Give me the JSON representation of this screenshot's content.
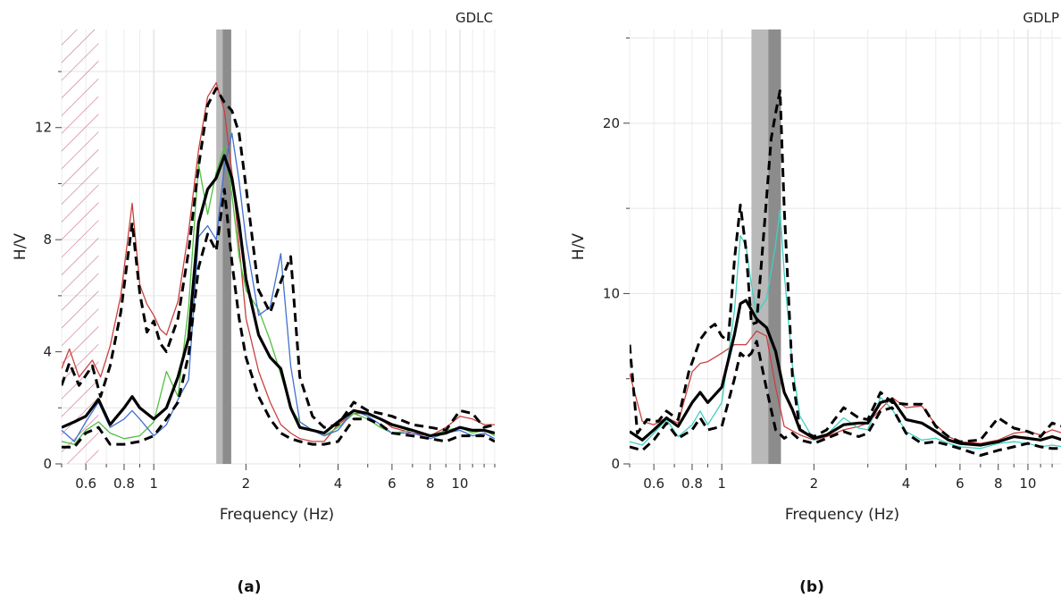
{
  "chart_data": [
    {
      "type": "line",
      "title": "GDLC",
      "caption": "(a)",
      "xlabel": "Frequency (Hz)",
      "ylabel": "H/V",
      "xscale": "log",
      "xlim": [
        0.5,
        13
      ],
      "ylim": [
        0,
        15.5
      ],
      "xticks": [
        {
          "v": 0.6,
          "t": "0.6"
        },
        {
          "v": 0.8,
          "t": "0.8"
        },
        {
          "v": 1,
          "t": "1"
        },
        {
          "v": 2,
          "t": "2"
        },
        {
          "v": 4,
          "t": "4"
        },
        {
          "v": 6,
          "t": "6"
        },
        {
          "v": 8,
          "t": "8"
        },
        {
          "v": 10,
          "t": "10"
        }
      ],
      "yticks": [
        {
          "v": 0,
          "t": "0"
        },
        {
          "v": 4,
          "t": "4"
        },
        {
          "v": 8,
          "t": "8"
        },
        {
          "v": 12,
          "t": "12"
        }
      ],
      "grid": true,
      "hatched_region": [
        0.5,
        0.66
      ],
      "peak_band": {
        "outer": [
          1.6,
          1.79
        ],
        "inner": [
          1.68,
          1.79
        ]
      },
      "series": [
        {
          "role": "component",
          "color": "#cc4040",
          "width": 1.3,
          "dash": "",
          "x": [
            0.5,
            0.53,
            0.57,
            0.63,
            0.67,
            0.72,
            0.78,
            0.85,
            0.9,
            0.95,
            1.0,
            1.05,
            1.1,
            1.2,
            1.3,
            1.4,
            1.5,
            1.6,
            1.7,
            1.8,
            1.9,
            2.0,
            2.2,
            2.4,
            2.6,
            2.8,
            3.0,
            3.3,
            3.6,
            4.0,
            4.5,
            5.0,
            5.5,
            6.0,
            7.0,
            8.0,
            9.0,
            10.0,
            11.0,
            12.0,
            13.0
          ],
          "y": [
            3.4,
            4.1,
            3.1,
            3.7,
            3.1,
            4.2,
            6.0,
            9.3,
            6.4,
            5.7,
            5.3,
            4.8,
            4.6,
            5.8,
            8.3,
            11.2,
            13.1,
            13.6,
            12.6,
            10.4,
            7.8,
            5.2,
            3.3,
            2.2,
            1.4,
            1.1,
            0.9,
            0.8,
            0.8,
            1.4,
            1.8,
            1.8,
            1.6,
            1.3,
            1.1,
            1.0,
            1.3,
            1.7,
            1.6,
            1.4,
            1.4
          ]
        },
        {
          "role": "component",
          "color": "#50c040",
          "width": 1.3,
          "dash": "",
          "x": [
            0.5,
            0.55,
            0.6,
            0.66,
            0.72,
            0.8,
            0.9,
            1.0,
            1.1,
            1.2,
            1.3,
            1.4,
            1.5,
            1.6,
            1.7,
            1.8,
            1.9,
            2.0,
            2.2,
            2.4,
            2.6,
            2.8,
            3.0,
            3.3,
            3.6,
            4.0,
            4.5,
            5.0,
            5.5,
            6.0,
            7.0,
            8.0,
            9.0,
            10.0,
            11.0,
            12.0,
            13.0
          ],
          "y": [
            0.8,
            0.7,
            1.2,
            1.5,
            1.1,
            0.9,
            1.0,
            1.5,
            3.3,
            2.4,
            5.6,
            10.7,
            8.9,
            10.4,
            11.3,
            9.6,
            7.4,
            6.2,
            5.5,
            4.4,
            3.2,
            2.0,
            1.5,
            1.2,
            1.0,
            1.3,
            1.8,
            1.6,
            1.3,
            1.1,
            1.2,
            1.0,
            1.2,
            1.3,
            1.1,
            1.2,
            1.0
          ]
        },
        {
          "role": "component",
          "color": "#4070d0",
          "width": 1.3,
          "dash": "",
          "x": [
            0.5,
            0.55,
            0.6,
            0.66,
            0.72,
            0.8,
            0.85,
            0.9,
            1.0,
            1.1,
            1.2,
            1.3,
            1.4,
            1.5,
            1.6,
            1.7,
            1.8,
            1.9,
            2.0,
            2.2,
            2.4,
            2.6,
            2.8,
            3.0,
            3.3,
            3.6,
            4.0,
            4.5,
            5.0,
            5.5,
            6.0,
            7.0,
            8.0,
            9.0,
            10.0,
            11.0,
            12.0,
            13.0
          ],
          "y": [
            1.2,
            0.8,
            1.5,
            2.2,
            1.3,
            1.6,
            1.9,
            1.6,
            1.0,
            1.4,
            2.3,
            3.0,
            8.1,
            8.5,
            8.0,
            10.6,
            11.8,
            10.1,
            8.0,
            5.3,
            5.6,
            7.5,
            3.5,
            1.5,
            1.2,
            1.0,
            1.2,
            1.9,
            1.7,
            1.4,
            1.1,
            1.1,
            0.9,
            1.1,
            1.2,
            1.0,
            1.1,
            0.9
          ]
        },
        {
          "role": "average",
          "color": "#000000",
          "width": 3.2,
          "dash": "",
          "x": [
            0.5,
            0.55,
            0.6,
            0.66,
            0.72,
            0.8,
            0.85,
            0.9,
            1.0,
            1.1,
            1.2,
            1.3,
            1.4,
            1.5,
            1.6,
            1.7,
            1.8,
            1.9,
            2.0,
            2.2,
            2.4,
            2.6,
            2.8,
            3.0,
            3.3,
            3.6,
            4.0,
            4.5,
            5.0,
            5.5,
            6.0,
            7.0,
            8.0,
            9.0,
            10.0,
            11.0,
            12.0,
            13.0
          ],
          "y": [
            1.3,
            1.5,
            1.7,
            2.3,
            1.4,
            2.0,
            2.4,
            2.0,
            1.6,
            2.0,
            3.1,
            4.5,
            8.6,
            9.8,
            10.2,
            11.0,
            10.2,
            8.6,
            6.6,
            4.6,
            3.8,
            3.4,
            2.0,
            1.3,
            1.2,
            1.1,
            1.5,
            1.9,
            1.8,
            1.6,
            1.4,
            1.2,
            1.0,
            1.1,
            1.3,
            1.2,
            1.2,
            1.1
          ]
        },
        {
          "role": "average-plus-std",
          "color": "#000000",
          "width": 3.0,
          "dash": "10 6",
          "x": [
            0.5,
            0.53,
            0.57,
            0.63,
            0.67,
            0.72,
            0.78,
            0.85,
            0.9,
            0.95,
            1.0,
            1.05,
            1.1,
            1.2,
            1.3,
            1.4,
            1.5,
            1.6,
            1.7,
            1.8,
            1.9,
            2.0,
            2.2,
            2.4,
            2.6,
            2.8,
            3.0,
            3.3,
            3.6,
            4.0,
            4.5,
            5.0,
            5.5,
            6.0,
            7.0,
            8.0,
            9.0,
            10.0,
            11.0,
            12.0,
            13.0
          ],
          "y": [
            2.8,
            3.6,
            2.8,
            3.5,
            2.4,
            3.5,
            5.4,
            8.6,
            6.1,
            4.7,
            5.1,
            4.3,
            4.0,
            5.2,
            7.6,
            10.6,
            12.8,
            13.4,
            12.9,
            12.6,
            11.8,
            9.9,
            6.2,
            5.4,
            6.5,
            7.4,
            3.1,
            1.7,
            1.3,
            1.4,
            2.2,
            1.9,
            1.8,
            1.7,
            1.4,
            1.3,
            1.2,
            1.9,
            1.8,
            1.3,
            1.4
          ]
        },
        {
          "role": "average-minus-std",
          "color": "#000000",
          "width": 3.0,
          "dash": "10 6",
          "x": [
            0.5,
            0.55,
            0.6,
            0.66,
            0.72,
            0.8,
            0.9,
            1.0,
            1.1,
            1.2,
            1.3,
            1.4,
            1.5,
            1.6,
            1.7,
            1.8,
            1.9,
            2.0,
            2.2,
            2.4,
            2.6,
            2.8,
            3.0,
            3.3,
            3.6,
            4.0,
            4.5,
            5.0,
            5.5,
            6.0,
            7.0,
            8.0,
            9.0,
            10.0,
            11.0,
            12.0,
            13.0
          ],
          "y": [
            0.6,
            0.6,
            1.1,
            1.3,
            0.7,
            0.7,
            0.8,
            1.0,
            1.6,
            2.2,
            3.9,
            7.0,
            8.2,
            7.6,
            9.8,
            7.2,
            5.2,
            3.8,
            2.4,
            1.6,
            1.1,
            0.9,
            0.8,
            0.7,
            0.7,
            0.8,
            1.6,
            1.6,
            1.4,
            1.1,
            1.0,
            0.9,
            0.8,
            1.0,
            1.0,
            1.0,
            0.8
          ]
        }
      ]
    },
    {
      "type": "line",
      "title": "GDLP",
      "caption": "(b)",
      "xlabel": "Frequency (Hz)",
      "ylabel": "H/V",
      "xscale": "log",
      "xlim": [
        0.5,
        13
      ],
      "ylim": [
        0,
        25.5
      ],
      "xticks": [
        {
          "v": 0.6,
          "t": "0.6"
        },
        {
          "v": 0.8,
          "t": "0.8"
        },
        {
          "v": 1,
          "t": "1"
        },
        {
          "v": 2,
          "t": "2"
        },
        {
          "v": 4,
          "t": "4"
        },
        {
          "v": 6,
          "t": "6"
        },
        {
          "v": 8,
          "t": "8"
        },
        {
          "v": 10,
          "t": "10"
        }
      ],
      "yticks": [
        {
          "v": 0,
          "t": "0"
        },
        {
          "v": 10,
          "t": "10"
        },
        {
          "v": 20,
          "t": "20"
        }
      ],
      "grid": true,
      "peak_band": {
        "outer": [
          1.25,
          1.56
        ],
        "inner": [
          1.42,
          1.56
        ]
      },
      "series": [
        {
          "role": "component",
          "color": "#cc4040",
          "width": 1.3,
          "dash": "",
          "x": [
            0.5,
            0.55,
            0.6,
            0.66,
            0.72,
            0.8,
            0.85,
            0.9,
            1.0,
            1.1,
            1.2,
            1.3,
            1.4,
            1.5,
            1.6,
            1.8,
            2.0,
            2.2,
            2.5,
            2.8,
            3.0,
            3.3,
            3.6,
            4.0,
            4.5,
            5.0,
            5.5,
            6.0,
            7.0,
            8.0,
            9.0,
            10.0,
            11.0,
            12.0,
            13.0
          ],
          "y": [
            5.3,
            2.5,
            2.3,
            2.7,
            2.4,
            5.4,
            5.9,
            6.0,
            6.5,
            7.0,
            7.0,
            7.8,
            7.5,
            4.5,
            2.2,
            1.7,
            1.4,
            1.6,
            2.0,
            2.2,
            2.4,
            3.2,
            3.9,
            3.3,
            3.4,
            2.3,
            1.6,
            1.3,
            1.2,
            1.4,
            1.8,
            1.9,
            1.7,
            2.0,
            1.8
          ]
        },
        {
          "role": "component",
          "color": "#40d0c0",
          "width": 1.3,
          "dash": "",
          "x": [
            0.5,
            0.55,
            0.6,
            0.66,
            0.72,
            0.8,
            0.85,
            0.9,
            1.0,
            1.1,
            1.15,
            1.2,
            1.25,
            1.3,
            1.4,
            1.5,
            1.55,
            1.6,
            1.7,
            1.8,
            2.0,
            2.2,
            2.5,
            2.8,
            3.0,
            3.3,
            3.6,
            4.0,
            4.5,
            5.0,
            5.5,
            6.0,
            7.0,
            8.0,
            9.0,
            10.0,
            11.0,
            12.0,
            13.0
          ],
          "y": [
            1.3,
            1.1,
            1.8,
            2.6,
            1.6,
            2.3,
            3.1,
            2.3,
            3.6,
            9.0,
            13.4,
            12.8,
            10.5,
            8.8,
            9.7,
            12.9,
            14.9,
            11.2,
            5.8,
            2.8,
            1.4,
            1.7,
            2.7,
            2.1,
            2.0,
            3.9,
            3.2,
            1.9,
            1.4,
            1.5,
            1.2,
            1.0,
            0.9,
            1.2,
            1.3,
            1.2,
            1.0,
            1.1,
            1.0
          ]
        },
        {
          "role": "average",
          "color": "#000000",
          "width": 3.2,
          "dash": "",
          "x": [
            0.5,
            0.55,
            0.6,
            0.66,
            0.72,
            0.8,
            0.85,
            0.9,
            1.0,
            1.1,
            1.15,
            1.2,
            1.3,
            1.4,
            1.5,
            1.6,
            1.7,
            1.8,
            2.0,
            2.2,
            2.5,
            2.8,
            3.0,
            3.3,
            3.6,
            4.0,
            4.5,
            5.0,
            5.5,
            6.0,
            7.0,
            8.0,
            9.0,
            10.0,
            11.0,
            12.0,
            13.0
          ],
          "y": [
            1.9,
            1.4,
            2.0,
            2.7,
            2.2,
            3.6,
            4.2,
            3.6,
            4.5,
            7.6,
            9.4,
            9.6,
            8.5,
            8.0,
            6.6,
            4.2,
            3.2,
            2.0,
            1.5,
            1.7,
            2.3,
            2.4,
            2.4,
            3.6,
            3.8,
            2.6,
            2.4,
            1.9,
            1.4,
            1.2,
            1.1,
            1.3,
            1.6,
            1.5,
            1.4,
            1.6,
            1.4
          ]
        },
        {
          "role": "average-plus-std",
          "color": "#000000",
          "width": 3.0,
          "dash": "10 6",
          "x": [
            0.5,
            0.53,
            0.57,
            0.62,
            0.66,
            0.72,
            0.78,
            0.85,
            0.9,
            0.95,
            1.0,
            1.05,
            1.1,
            1.15,
            1.2,
            1.25,
            1.3,
            1.35,
            1.4,
            1.45,
            1.5,
            1.55,
            1.6,
            1.7,
            1.8,
            2.0,
            2.2,
            2.5,
            2.8,
            3.0,
            3.3,
            3.6,
            4.0,
            4.5,
            5.0,
            5.5,
            6.0,
            7.0,
            8.0,
            9.0,
            10.0,
            11.0,
            12.0,
            13.0
          ],
          "y": [
            7.0,
            1.8,
            2.6,
            2.5,
            3.1,
            2.6,
            5.4,
            7.3,
            7.9,
            8.2,
            7.5,
            7.2,
            12.0,
            15.2,
            12.6,
            8.2,
            8.3,
            12.0,
            15.6,
            19.1,
            20.6,
            21.9,
            15.0,
            5.2,
            2.0,
            1.6,
            2.0,
            3.3,
            2.7,
            2.6,
            4.2,
            3.6,
            3.5,
            3.5,
            2.2,
            1.6,
            1.3,
            1.4,
            2.7,
            2.1,
            1.9,
            1.6,
            2.4,
            2.2
          ]
        },
        {
          "role": "average-minus-std",
          "color": "#000000",
          "width": 3.0,
          "dash": "10 6",
          "x": [
            0.5,
            0.55,
            0.6,
            0.66,
            0.72,
            0.8,
            0.85,
            0.9,
            1.0,
            1.1,
            1.15,
            1.2,
            1.25,
            1.3,
            1.4,
            1.5,
            1.6,
            1.7,
            1.8,
            2.0,
            2.2,
            2.5,
            2.8,
            3.0,
            3.3,
            3.6,
            4.0,
            4.5,
            5.0,
            5.5,
            6.0,
            7.0,
            8.0,
            9.0,
            10.0,
            11.0,
            12.0,
            13.0
          ],
          "y": [
            1.0,
            0.8,
            1.4,
            2.4,
            1.5,
            2.0,
            2.7,
            2.0,
            2.2,
            5.0,
            6.5,
            6.2,
            6.5,
            7.2,
            4.4,
            2.0,
            1.5,
            1.8,
            1.4,
            1.2,
            1.5,
            1.9,
            1.6,
            1.8,
            3.1,
            3.3,
            1.8,
            1.2,
            1.3,
            1.1,
            0.9,
            0.5,
            0.8,
            1.0,
            1.2,
            1.0,
            0.9,
            0.9
          ]
        }
      ]
    }
  ]
}
